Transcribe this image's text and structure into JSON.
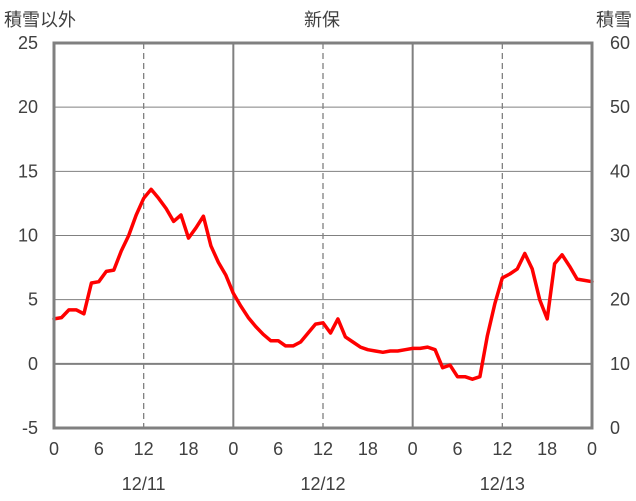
{
  "chart_data": {
    "type": "line",
    "title": "新保",
    "left_axis_label": "積雪以外",
    "right_axis_label": "積雪",
    "left_ylim": [
      -5,
      25
    ],
    "left_yticks": [
      "-5",
      "0",
      "5",
      "10",
      "15",
      "20",
      "25"
    ],
    "right_ylim": [
      0,
      60
    ],
    "right_yticks": [
      "0",
      "10",
      "20",
      "30",
      "40",
      "50",
      "60"
    ],
    "xlim_hours": [
      0,
      72
    ],
    "x_tick_labels": [
      "0",
      "6",
      "12",
      "18",
      "0",
      "6",
      "12",
      "18",
      "0",
      "6",
      "12",
      "18",
      "0"
    ],
    "date_labels": [
      "12/11",
      "12/12",
      "12/13"
    ],
    "grid": "vertical: solid at day boundaries, dashed at 12:00",
    "legend": "none",
    "series": [
      {
        "axis": "left",
        "color": "#ff0000",
        "values": [
          3.5,
          3.6,
          4.2,
          4.2,
          3.9,
          6.3,
          6.4,
          7.2,
          7.3,
          8.8,
          10.0,
          11.6,
          12.9,
          13.6,
          12.9,
          12.1,
          11.1,
          11.6,
          9.8,
          10.6,
          11.5,
          9.2,
          7.9,
          6.9,
          5.5,
          4.5,
          3.6,
          2.9,
          2.3,
          1.8,
          1.8,
          1.4,
          1.4,
          1.7,
          2.4,
          3.1,
          3.2,
          2.4,
          3.5,
          2.1,
          1.7,
          1.3,
          1.1,
          1.0,
          0.9,
          1.0,
          1.0,
          1.1,
          1.2,
          1.2,
          1.3,
          1.1,
          -0.3,
          -0.1,
          -1.0,
          -1.0,
          -1.2,
          -1.0,
          2.2,
          4.7,
          6.7,
          7.0,
          7.4,
          8.6,
          7.4,
          5.0,
          3.5,
          7.8,
          8.5,
          7.6,
          6.6,
          6.5,
          6.4
        ]
      },
      {
        "axis": "right",
        "color": "#7030a0",
        "values": [
          0,
          0
        ]
      }
    ]
  }
}
